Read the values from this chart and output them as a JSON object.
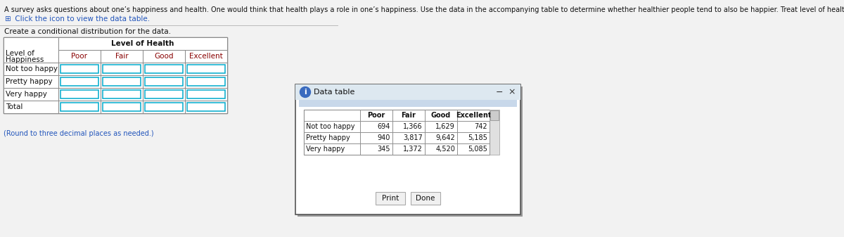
{
  "title_text": "A survey asks questions about one’s happiness and health. One would think that health plays a role in one’s happiness. Use the data in the accompanying table to determine whether healthier people tend to also be happier. Treat level of health as the explanatory variable.",
  "subtitle_icon": "⊞",
  "subtitle_text": " Click the icon to view the data table.",
  "instruction_text": "Create a conditional distribution for the data.",
  "left_table": {
    "span_header": "Level of Health",
    "col_headers": [
      "Poor",
      "Fair",
      "Good",
      "Excellent"
    ],
    "row_label_top": "Level of",
    "row_label_bot": "Happiness",
    "row_labels": [
      "Not too happy",
      "Pretty happy",
      "Very happy",
      "Total"
    ]
  },
  "right_table": {
    "title": "Data table",
    "col_headers": [
      "Poor",
      "Fair",
      "Good",
      "Excellent"
    ],
    "rows": [
      [
        "Not too happy",
        "694",
        "1,366",
        "1,629",
        "742"
      ],
      [
        "Pretty happy",
        "940",
        "3,817",
        "9,642",
        "5,185"
      ],
      [
        "Very happy",
        "345",
        "1,372",
        "4,520",
        "5,085"
      ]
    ],
    "btn1": "Print",
    "btn2": "Done"
  },
  "note_text": "(Round to three decimal places as needed.)"
}
